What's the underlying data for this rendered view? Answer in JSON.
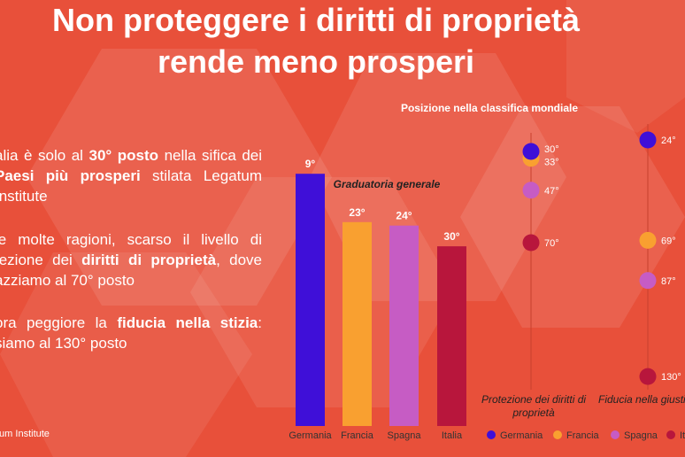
{
  "title": {
    "line1": "Non proteggere i diritti di proprietà",
    "line2": "rende meno prosperi"
  },
  "text": {
    "para1": {
      "t1": "alia è solo al ",
      "b1": "30° posto",
      "t2": " nella sifica dei ",
      "b2": "Paesi più prosperi",
      "t3": " stilata Legatum Institute"
    },
    "para2": {
      "t1": "le molte ragioni, scarso il livello di tezione dei ",
      "b1": "diritti di proprietà",
      "t2": ", dove azziamo al 70° posto"
    },
    "para3": {
      "t1": "ora peggiore la ",
      "b1": "fiducia nella stizia",
      "t2": ": siamo al 130° posto"
    }
  },
  "source": "tum Institute",
  "colors": {
    "background": "#e8503a",
    "Germania": "#3f0fd8",
    "Francia": "#f9a030",
    "Spagna": "#c65cc4",
    "Italia": "#b8163c"
  },
  "chart_data": [
    {
      "type": "bar",
      "title": "Graduatoria generale",
      "categories": [
        "Germania",
        "Francia",
        "Spagna",
        "Italia"
      ],
      "values": [
        9,
        23,
        24,
        30
      ],
      "labels": [
        "9°",
        "23°",
        "24°",
        "30°"
      ],
      "ylim": [
        0,
        40
      ]
    },
    {
      "type": "scatter",
      "title": "Posizione nella classifica mondiale",
      "columns": [
        {
          "name": "Protezione dei diritti di proprietà",
          "name_line1": "Protezione dei diritti di",
          "name_line2": "proprietà",
          "points": [
            {
              "series": "Germania",
              "value": 30,
              "label": "30°"
            },
            {
              "series": "Francia",
              "value": 33,
              "label": "33°"
            },
            {
              "series": "Spagna",
              "value": 47,
              "label": "47°"
            },
            {
              "series": "Italia",
              "value": 70,
              "label": "70°"
            }
          ]
        },
        {
          "name": "Fiducia nella giusti",
          "points": [
            {
              "series": "Germania",
              "value": 24,
              "label": "24°"
            },
            {
              "series": "Francia",
              "value": 69,
              "label": "69°"
            },
            {
              "series": "Spagna",
              "value": 87,
              "label": "87°"
            },
            {
              "series": "Italia",
              "value": 130,
              "label": "130°"
            }
          ]
        }
      ],
      "legend": [
        "Germania",
        "Francia",
        "Spagna",
        "It"
      ]
    }
  ]
}
